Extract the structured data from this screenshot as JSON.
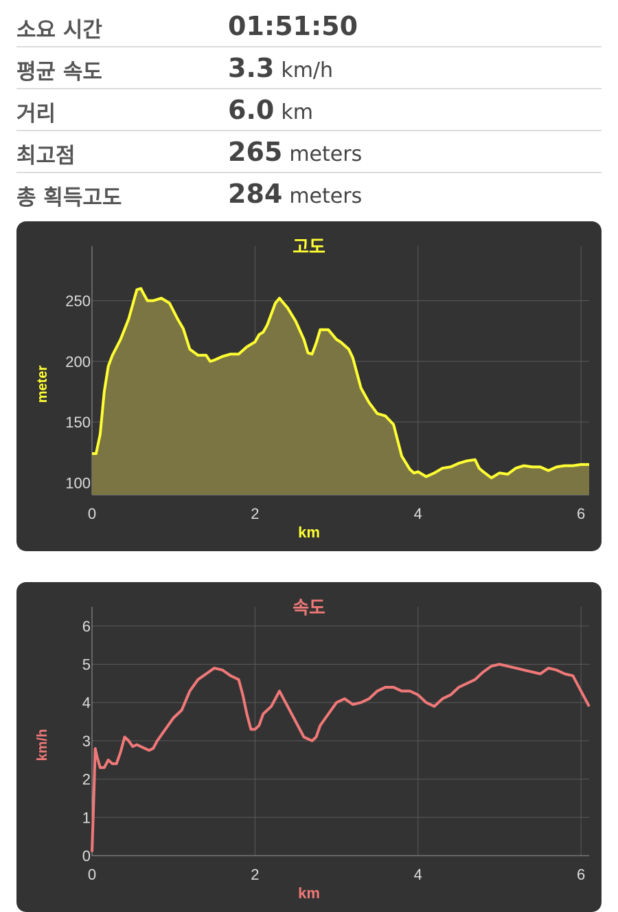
{
  "stats": [
    {
      "label": "소요 시간",
      "value": "01:51:50",
      "unit": ""
    },
    {
      "label": "평균 속도",
      "value": "3.3",
      "unit": "km/h"
    },
    {
      "label": "거리",
      "value": "6.0",
      "unit": "km"
    },
    {
      "label": "최고점",
      "value": "265",
      "unit": "meters"
    },
    {
      "label": "총 획득고도",
      "value": "284",
      "unit": "meters"
    }
  ],
  "chart_data": [
    {
      "type": "area",
      "title": "고도",
      "xlabel": "km",
      "ylabel": "meter",
      "color": "#ffff33",
      "fill": "#7a7543",
      "xlim": [
        0,
        6.1
      ],
      "ylim": [
        90,
        295
      ],
      "xticks": [
        "0",
        "2",
        "4",
        "6"
      ],
      "yticks": [
        "100",
        "150",
        "200",
        "250"
      ],
      "x": [
        0.0,
        0.05,
        0.1,
        0.15,
        0.2,
        0.25,
        0.35,
        0.45,
        0.55,
        0.6,
        0.63,
        0.68,
        0.75,
        0.85,
        0.95,
        1.05,
        1.12,
        1.2,
        1.3,
        1.4,
        1.45,
        1.5,
        1.6,
        1.7,
        1.8,
        1.9,
        2.0,
        2.05,
        2.1,
        2.15,
        2.2,
        2.25,
        2.3,
        2.35,
        2.4,
        2.5,
        2.6,
        2.65,
        2.7,
        2.75,
        2.8,
        2.9,
        3.0,
        3.05,
        3.1,
        3.15,
        3.2,
        3.3,
        3.4,
        3.5,
        3.6,
        3.7,
        3.8,
        3.9,
        3.95,
        4.0,
        4.1,
        4.2,
        4.3,
        4.4,
        4.5,
        4.6,
        4.7,
        4.75,
        4.8,
        4.9,
        5.0,
        5.1,
        5.2,
        5.3,
        5.4,
        5.5,
        5.6,
        5.7,
        5.8,
        5.9,
        6.0,
        6.1
      ],
      "y": [
        124,
        124,
        140,
        175,
        196,
        205,
        218,
        235,
        259,
        260,
        256,
        250,
        250,
        252,
        248,
        235,
        227,
        210,
        205,
        205,
        200,
        201,
        204,
        206,
        206,
        212,
        216,
        222,
        224,
        230,
        239,
        248,
        252,
        248,
        244,
        233,
        218,
        207,
        206,
        215,
        226,
        226,
        218,
        216,
        213,
        210,
        203,
        178,
        166,
        157,
        155,
        148,
        122,
        111,
        108,
        109,
        105,
        108,
        112,
        113,
        116,
        118,
        119,
        112,
        109,
        104,
        108,
        107,
        112,
        114,
        113,
        113,
        110,
        113,
        114,
        114,
        115,
        115
      ]
    },
    {
      "type": "line",
      "title": "속도",
      "xlabel": "km",
      "ylabel": "km/h",
      "color": "#f07878",
      "xlim": [
        0,
        6.1
      ],
      "ylim": [
        0,
        6.5
      ],
      "xticks": [
        "0",
        "2",
        "4",
        "6"
      ],
      "yticks": [
        "0",
        "1",
        "2",
        "3",
        "4",
        "5",
        "6"
      ],
      "x": [
        0.0,
        0.02,
        0.04,
        0.06,
        0.1,
        0.15,
        0.2,
        0.25,
        0.3,
        0.35,
        0.4,
        0.45,
        0.5,
        0.55,
        0.6,
        0.65,
        0.7,
        0.75,
        0.8,
        0.9,
        1.0,
        1.1,
        1.2,
        1.3,
        1.4,
        1.5,
        1.6,
        1.7,
        1.8,
        1.85,
        1.9,
        1.95,
        2.0,
        2.05,
        2.1,
        2.2,
        2.3,
        2.35,
        2.4,
        2.5,
        2.6,
        2.7,
        2.75,
        2.8,
        2.9,
        3.0,
        3.1,
        3.2,
        3.3,
        3.4,
        3.5,
        3.6,
        3.7,
        3.8,
        3.9,
        4.0,
        4.1,
        4.2,
        4.3,
        4.4,
        4.5,
        4.6,
        4.7,
        4.8,
        4.9,
        5.0,
        5.1,
        5.2,
        5.3,
        5.4,
        5.5,
        5.6,
        5.7,
        5.8,
        5.9,
        6.0,
        6.1
      ],
      "y": [
        0.1,
        1.4,
        2.8,
        2.6,
        2.3,
        2.3,
        2.5,
        2.4,
        2.4,
        2.7,
        3.1,
        3.0,
        2.85,
        2.9,
        2.85,
        2.8,
        2.75,
        2.8,
        3.0,
        3.3,
        3.6,
        3.8,
        4.3,
        4.6,
        4.75,
        4.9,
        4.85,
        4.7,
        4.6,
        4.2,
        3.7,
        3.3,
        3.3,
        3.4,
        3.7,
        3.9,
        4.3,
        4.1,
        3.9,
        3.5,
        3.1,
        3.0,
        3.1,
        3.4,
        3.7,
        4.0,
        4.1,
        3.95,
        4.0,
        4.1,
        4.3,
        4.4,
        4.4,
        4.3,
        4.3,
        4.2,
        4.0,
        3.9,
        4.1,
        4.2,
        4.4,
        4.5,
        4.6,
        4.8,
        4.95,
        5.0,
        4.95,
        4.9,
        4.85,
        4.8,
        4.75,
        4.9,
        4.85,
        4.75,
        4.7,
        4.3,
        3.9
      ]
    }
  ]
}
